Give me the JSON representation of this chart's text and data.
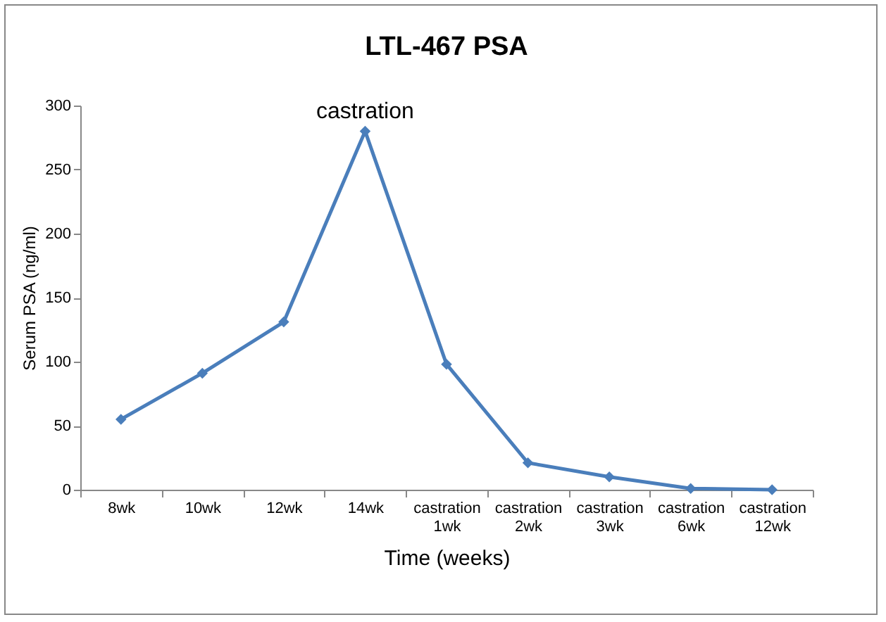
{
  "chart_data": {
    "type": "line",
    "title": "LTL-467 PSA",
    "xlabel": "Time (weeks)",
    "ylabel": "Serum PSA (ng/ml)",
    "categories": [
      "8wk",
      "10wk",
      "12wk",
      "14wk",
      "castration 1wk",
      "castration 2wk",
      "castration 3wk",
      "castration 6wk",
      "castration 12wk"
    ],
    "series": [
      {
        "color": "#4a7ebb",
        "values": [
          55,
          91,
          131,
          280,
          98,
          21,
          10,
          1,
          0
        ]
      }
    ],
    "ylim": [
      0,
      300
    ],
    "yticks": [
      0,
      50,
      100,
      150,
      200,
      250,
      300
    ],
    "grid": false,
    "legend": false,
    "marker": "diamond",
    "line_style": "solid",
    "annotations": [
      {
        "text": "castration",
        "x": "14wk",
        "y": 280
      }
    ]
  }
}
